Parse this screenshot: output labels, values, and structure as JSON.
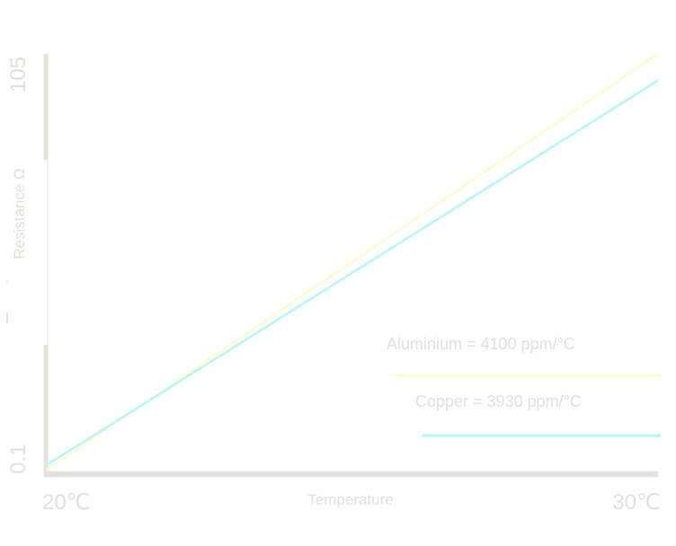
{
  "colors": {
    "axis": "#e6e3dd",
    "text": "#e3e0da",
    "aluminium": "#fdfbd2",
    "copper": "#b5f6f7"
  },
  "chart_data": {
    "type": "line",
    "title": "",
    "xlabel": "Temperature",
    "ylabel": "Resistance Ω",
    "x_tick_labels": [
      "20℃",
      "30℃"
    ],
    "y_tick_labels": [
      "0.1",
      "105"
    ],
    "xlim": [
      20,
      30
    ],
    "ylim": [
      0.1,
      105
    ],
    "legend_position": "bottom-right",
    "grid": false,
    "series": [
      {
        "name": "Aluminium = 4100 ppm/°C",
        "color": "#fdfbd2",
        "x": [
          20,
          30
        ],
        "y": [
          0.1,
          105
        ]
      },
      {
        "name": "Copper = 3930 ppm/°C",
        "color": "#b5f6f7",
        "x": [
          20,
          30
        ],
        "y": [
          1.3,
          98.3
        ]
      }
    ]
  }
}
